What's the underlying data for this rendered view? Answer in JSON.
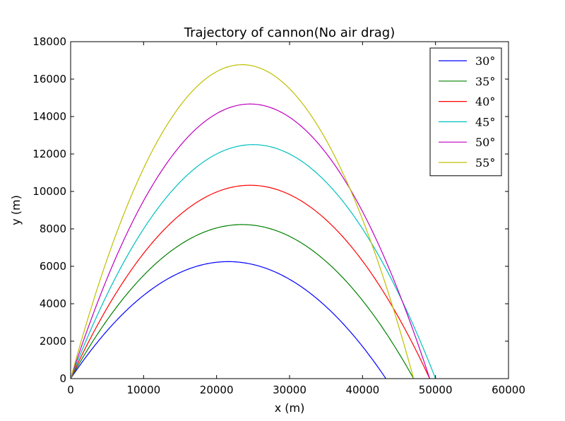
{
  "chart_data": {
    "type": "line",
    "title": "Trajectory of cannon(No air drag)",
    "xlabel": "x (m)",
    "ylabel": "y (m)",
    "xlim": [
      0,
      60000
    ],
    "ylim": [
      0,
      18000
    ],
    "xticks": [
      0,
      10000,
      20000,
      30000,
      40000,
      50000,
      60000
    ],
    "yticks": [
      0,
      2000,
      4000,
      6000,
      8000,
      10000,
      12000,
      14000,
      16000,
      18000
    ],
    "grid": false,
    "legend_position": "top-right",
    "series": [
      {
        "name": "30°",
        "color": "#0000ff",
        "apex_x": 21600,
        "apex_y": 6250,
        "range": 43300
      },
      {
        "name": "35°",
        "color": "#008000",
        "apex_x": 23500,
        "apex_y": 8230,
        "range": 47000
      },
      {
        "name": "40°",
        "color": "#ff0000",
        "apex_x": 24600,
        "apex_y": 10330,
        "range": 49200
      },
      {
        "name": "45°",
        "color": "#00bfbf",
        "apex_x": 25000,
        "apex_y": 12500,
        "range": 50000
      },
      {
        "name": "50°",
        "color": "#bf00bf",
        "apex_x": 24600,
        "apex_y": 14670,
        "range": 49200
      },
      {
        "name": "55°",
        "color": "#bfbf00",
        "apex_x": 23500,
        "apex_y": 16770,
        "range": 47000
      }
    ]
  }
}
